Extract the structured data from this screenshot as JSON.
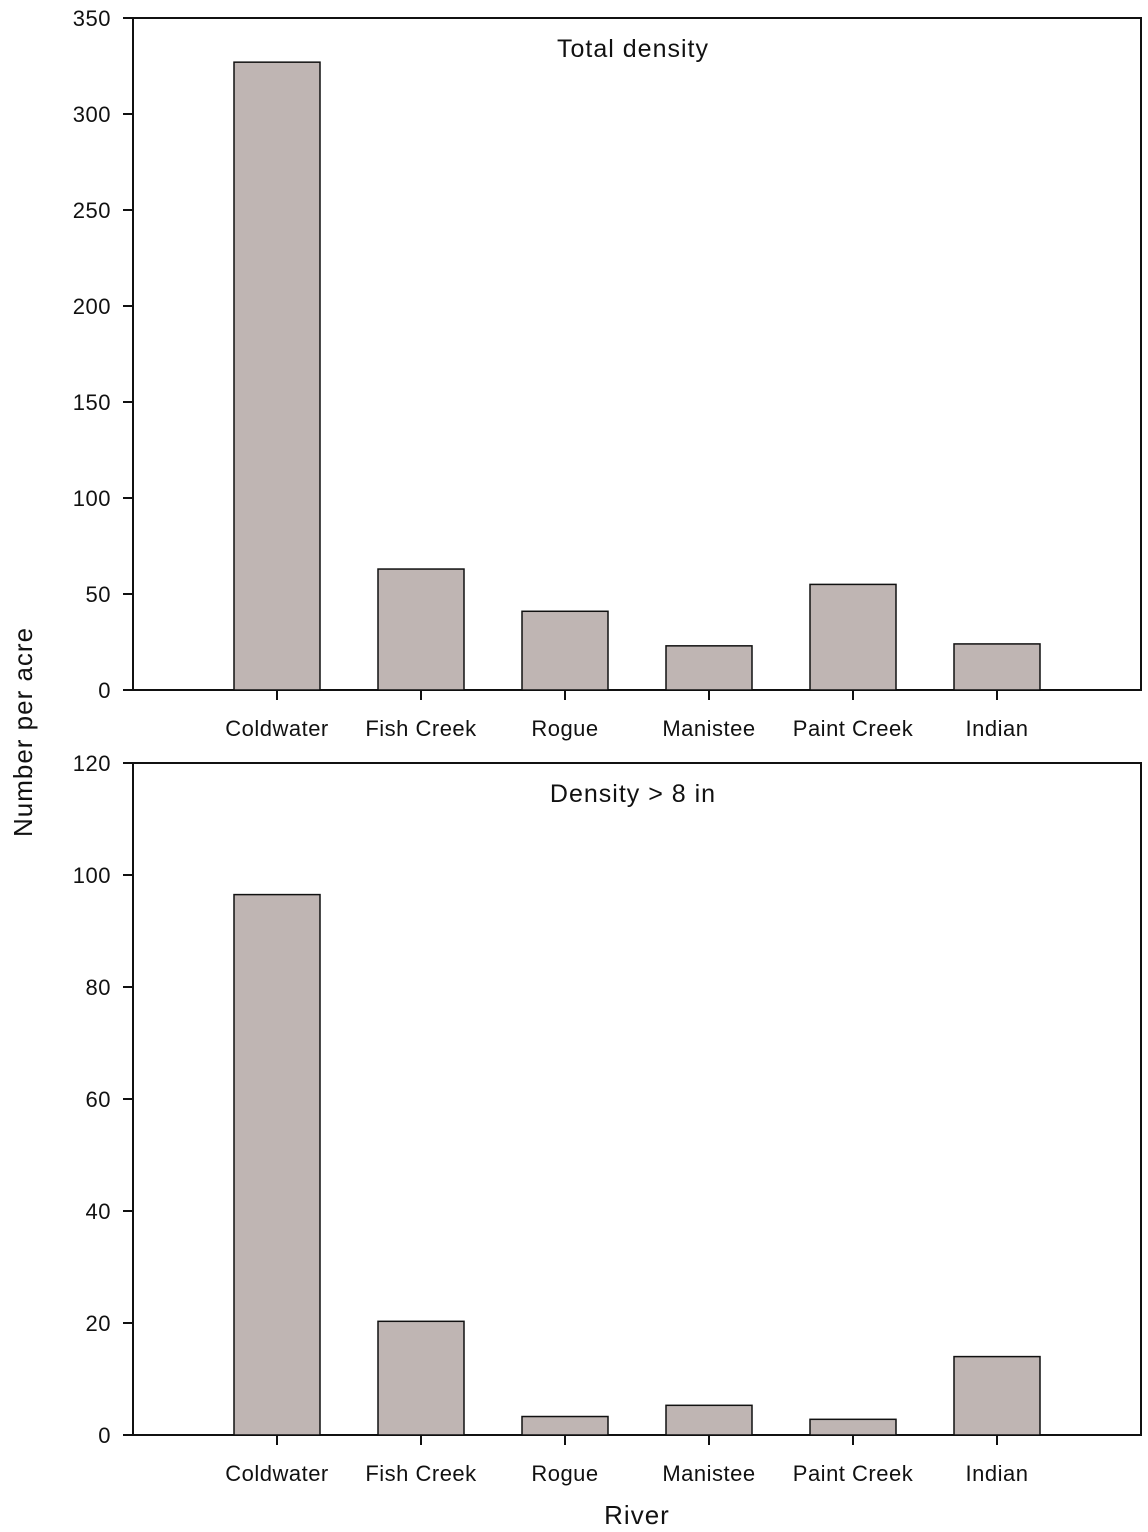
{
  "chart_data": [
    {
      "type": "bar",
      "title": "Total density",
      "categories": [
        "Coldwater",
        "Fish Creek",
        "Rogue",
        "Manistee",
        "Paint Creek",
        "Indian"
      ],
      "values": [
        327,
        63,
        41,
        23,
        55,
        24
      ],
      "ylim": [
        0,
        350
      ],
      "yticks": [
        0,
        50,
        100,
        150,
        200,
        250,
        300,
        350
      ],
      "bar_color": "#bfb5b3"
    },
    {
      "type": "bar",
      "title": "Density > 8 in",
      "categories": [
        "Coldwater",
        "Fish Creek",
        "Rogue",
        "Manistee",
        "Paint Creek",
        "Indian"
      ],
      "values": [
        96.5,
        20.3,
        3.3,
        5.3,
        2.8,
        14.0
      ],
      "ylim": [
        0,
        120
      ],
      "yticks": [
        0,
        20,
        40,
        60,
        80,
        100,
        120
      ],
      "bar_color": "#bfb5b3"
    }
  ],
  "ylabel": "Number per acre",
  "xlabel": "River"
}
